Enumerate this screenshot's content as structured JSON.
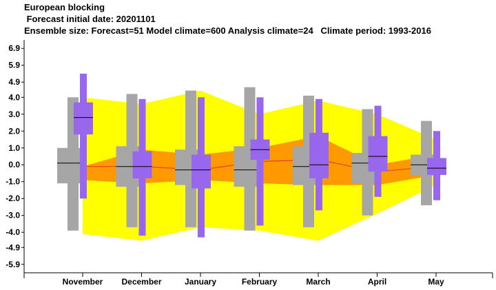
{
  "title_lines": [
    "European blocking",
    " Forecast initial date: 20201101",
    "Ensemble size: Forecast=51 Model climate=600 Analysis climate=24   Climate period: 1993-2016"
  ],
  "chart_data": {
    "type": "box",
    "categories": [
      "November",
      "December",
      "January",
      "February",
      "March",
      "April",
      "May"
    ],
    "ylim": [
      -6.4,
      7.4
    ],
    "yticks": [
      6.9,
      5.9,
      4.9,
      4.0,
      3.0,
      2.0,
      1.0,
      0.0,
      -1.0,
      -2.0,
      -3.0,
      -4.0,
      -4.9,
      -5.9
    ],
    "ytick_labels": [
      "6.9",
      "5.9",
      "4.9",
      "4.0",
      "3.0",
      "2.0",
      "1.0",
      "0.0",
      "-1.0",
      "-2.0",
      "-3.0",
      "-4.0",
      "-4.9",
      "-5.9"
    ],
    "grid": false,
    "legend": "none",
    "colors": {
      "analysis_outer_band": "#ffff00",
      "analysis_inner_band": "#ff9900",
      "analysis_median_line": "#e8402a",
      "model_climate": "#a6a6a6",
      "forecast": "#9966ee",
      "median_mark": "#000000"
    },
    "analysis_climate": {
      "outer_upper": [
        4.0,
        3.6,
        4.4,
        3.0,
        3.8,
        3.0,
        1.5
      ],
      "outer_lower": [
        -4.1,
        -4.5,
        -3.7,
        -3.9,
        -4.5,
        -2.9,
        -1.2
      ],
      "inner_upper": [
        -0.1,
        0.9,
        0.6,
        1.0,
        1.7,
        0.0,
        0.6
      ],
      "inner_lower": [
        -0.9,
        -1.1,
        -0.9,
        -1.1,
        -1.2,
        -1.2,
        -0.6
      ],
      "median": [
        -0.1,
        -0.1,
        -0.3,
        0.2,
        0.3,
        -0.4,
        -0.1
      ]
    },
    "model_climate": {
      "min": [
        -3.9,
        -3.7,
        -3.7,
        -3.9,
        -3.7,
        -3.0,
        -2.4
      ],
      "q1": [
        -1.1,
        -1.3,
        -1.2,
        -1.3,
        -1.2,
        -1.1,
        -0.6
      ],
      "median": [
        0.1,
        -0.1,
        -0.3,
        -0.3,
        -0.1,
        0.1,
        0.0
      ],
      "q3": [
        1.0,
        1.1,
        0.9,
        1.1,
        1.1,
        0.7,
        0.6
      ],
      "max": [
        4.0,
        4.2,
        4.4,
        4.6,
        4.1,
        3.3,
        2.6
      ]
    },
    "forecast": {
      "min": [
        -2.0,
        -4.2,
        -4.3,
        -3.6,
        -2.7,
        -1.9,
        -2.1
      ],
      "q1": [
        1.8,
        -0.8,
        -1.4,
        0.3,
        -0.8,
        -0.4,
        -0.6
      ],
      "median": [
        2.8,
        -0.1,
        -0.3,
        0.9,
        0.0,
        0.5,
        -0.2
      ],
      "q3": [
        3.7,
        0.8,
        0.6,
        1.5,
        1.9,
        1.7,
        0.4
      ],
      "max": [
        5.4,
        3.9,
        4.0,
        4.0,
        3.9,
        3.5,
        2.0
      ]
    }
  }
}
